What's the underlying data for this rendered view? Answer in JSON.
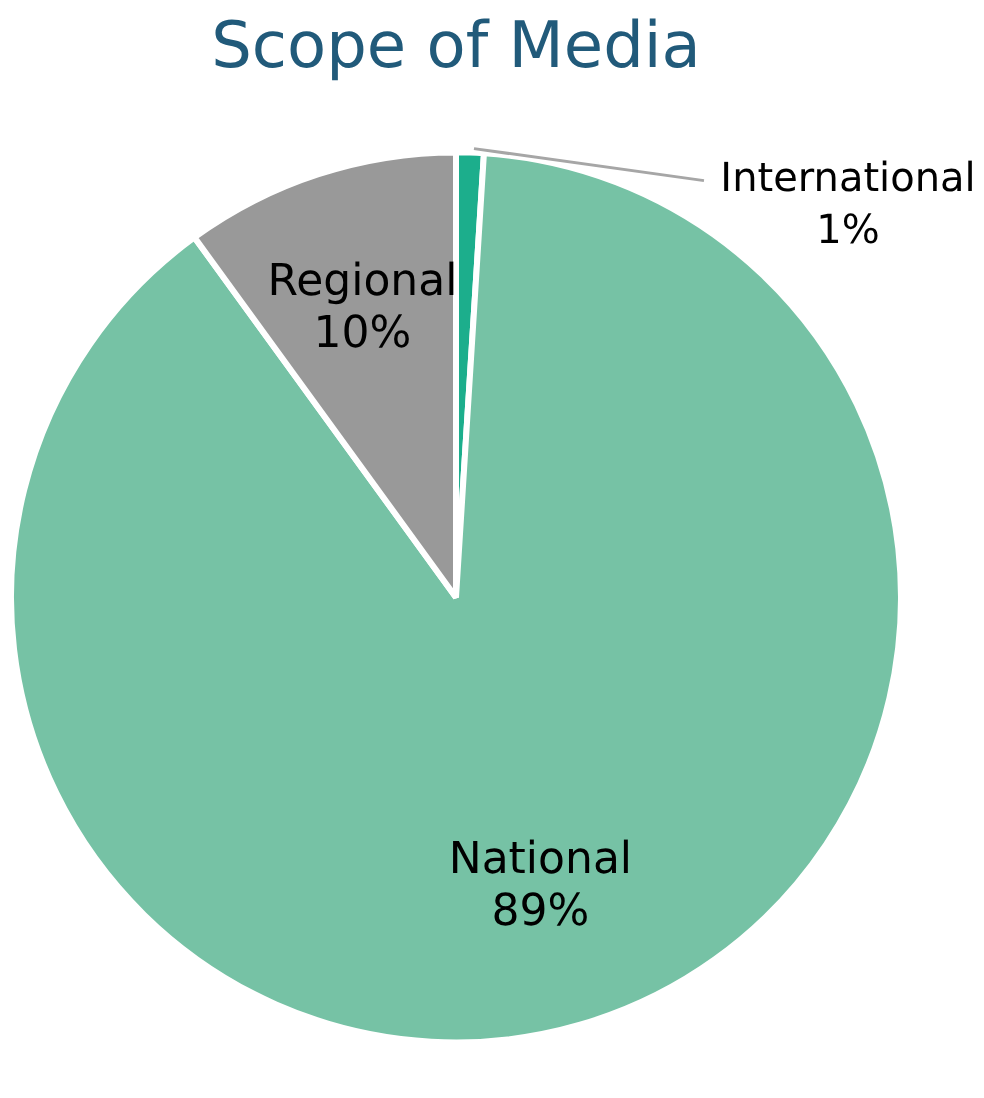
{
  "chart_data": {
    "type": "pie",
    "title": "Scope of Media",
    "categories": [
      "International",
      "National",
      "Regional"
    ],
    "values": [
      1,
      89,
      10
    ],
    "colors": [
      "#1cae8c",
      "#76c2a5",
      "#999999"
    ],
    "value_labels": [
      "1%",
      "89%",
      "10%"
    ],
    "legend": false
  }
}
